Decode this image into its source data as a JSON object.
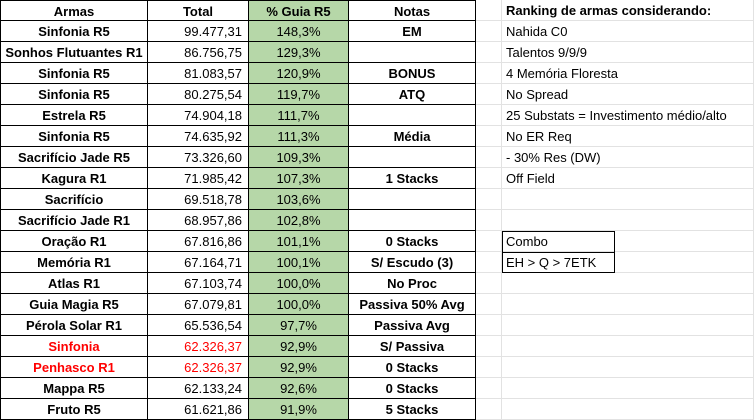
{
  "headers": {
    "weapon": "Armas",
    "total": "Total",
    "guia": "% Guia R5",
    "notas": "Notas"
  },
  "rows": [
    {
      "weapon": "Sinfonia R5",
      "total": "99.477,31",
      "guia": "148,3%",
      "note": "EM",
      "red": false
    },
    {
      "weapon": "Sonhos Flutuantes R1",
      "total": "86.756,75",
      "guia": "129,3%",
      "note": "",
      "red": false
    },
    {
      "weapon": "Sinfonia R5",
      "total": "81.083,57",
      "guia": "120,9%",
      "note": "BONUS",
      "red": false
    },
    {
      "weapon": "Sinfonia R5",
      "total": "80.275,54",
      "guia": "119,7%",
      "note": "ATQ",
      "red": false
    },
    {
      "weapon": "Estrela R5",
      "total": "74.904,18",
      "guia": "111,7%",
      "note": "",
      "red": false
    },
    {
      "weapon": "Sinfonia R5",
      "total": "74.635,92",
      "guia": "111,3%",
      "note": "Média",
      "red": false
    },
    {
      "weapon": "Sacrifício Jade R5",
      "total": "73.326,60",
      "guia": "109,3%",
      "note": "",
      "red": false
    },
    {
      "weapon": "Kagura R1",
      "total": "71.985,42",
      "guia": "107,3%",
      "note": "1 Stacks",
      "red": false
    },
    {
      "weapon": "Sacrifício",
      "total": "69.518,78",
      "guia": "103,6%",
      "note": "",
      "red": false
    },
    {
      "weapon": "Sacrifício Jade R1",
      "total": "68.957,86",
      "guia": "102,8%",
      "note": "",
      "red": false
    },
    {
      "weapon": "Oração R1",
      "total": "67.816,86",
      "guia": "101,1%",
      "note": "0 Stacks",
      "red": false
    },
    {
      "weapon": "Memória R1",
      "total": "67.164,71",
      "guia": "100,1%",
      "note": "S/ Escudo (3)",
      "red": false
    },
    {
      "weapon": "Atlas R1",
      "total": "67.103,74",
      "guia": "100,0%",
      "note": "No Proc",
      "red": false
    },
    {
      "weapon": "Guia Magia R5",
      "total": "67.079,81",
      "guia": "100,0%",
      "note": "Passiva 50% Avg",
      "red": false
    },
    {
      "weapon": "Pérola Solar R1",
      "total": "65.536,54",
      "guia": "97,7%",
      "note": "Passiva Avg",
      "red": false
    },
    {
      "weapon": "Sinfonia",
      "total": "62.326,37",
      "guia": "92,9%",
      "note": "S/ Passiva",
      "red": true
    },
    {
      "weapon": "Penhasco R1",
      "total": "62.326,37",
      "guia": "92,9%",
      "note": "0 Stacks",
      "red": true
    },
    {
      "weapon": "Mappa R5",
      "total": "62.133,24",
      "guia": "92,6%",
      "note": "0 Stacks",
      "red": false
    },
    {
      "weapon": "Fruto R5",
      "total": "61.621,86",
      "guia": "91,9%",
      "note": "5 Stacks",
      "red": false
    }
  ],
  "ranking": {
    "title": "Ranking de armas considerando:",
    "items": [
      "Nahida C0",
      "Talentos 9/9/9",
      "4 Memória Floresta",
      "No Spread",
      "25 Substats = Investimento médio/alto",
      "No ER Req",
      "- 30% Res (DW)",
      "Off Field"
    ]
  },
  "combo": {
    "label": "Combo",
    "value": "EH > Q > 7ETK"
  },
  "colors": {
    "guia_fill": "#b6d7a8",
    "highlight_text": "#ff0000",
    "gridline": "#e2e2e2"
  }
}
